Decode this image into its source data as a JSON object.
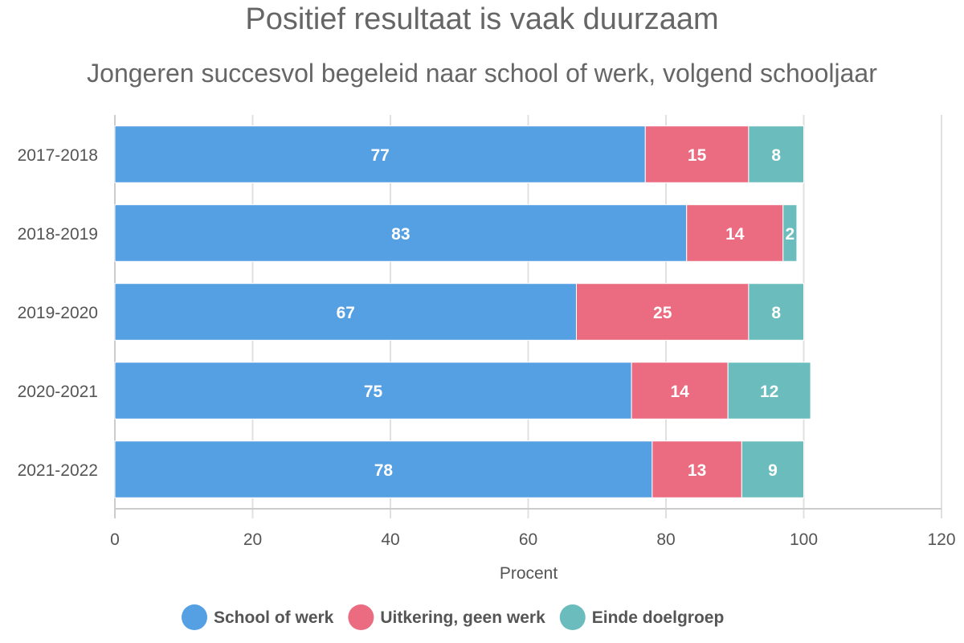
{
  "chart_data": {
    "type": "bar",
    "orientation": "horizontal",
    "stacked": true,
    "title": "Positief resultaat is vaak duurzaam",
    "subtitle": "Jongeren succesvol begeleid naar school of werk, volgend schooljaar",
    "categories": [
      "2017-2018",
      "2018-2019",
      "2019-2020",
      "2020-2021",
      "2021-2022"
    ],
    "series": [
      {
        "name": "School of werk",
        "color": "#559fe3",
        "values": [
          77,
          83,
          67,
          75,
          78
        ]
      },
      {
        "name": "Uitkering, geen werk",
        "color": "#eb6b80",
        "values": [
          15,
          14,
          25,
          14,
          13
        ]
      },
      {
        "name": "Einde doelgroep",
        "color": "#6bbdbd",
        "values": [
          8,
          2,
          8,
          12,
          9
        ]
      }
    ],
    "xlabel": "Procent",
    "ylabel": "",
    "xlim": [
      0,
      120
    ],
    "x_ticks": [
      "0",
      "20",
      "40",
      "60",
      "80",
      "100",
      "120"
    ],
    "grid": true,
    "legend_position": "bottom"
  }
}
